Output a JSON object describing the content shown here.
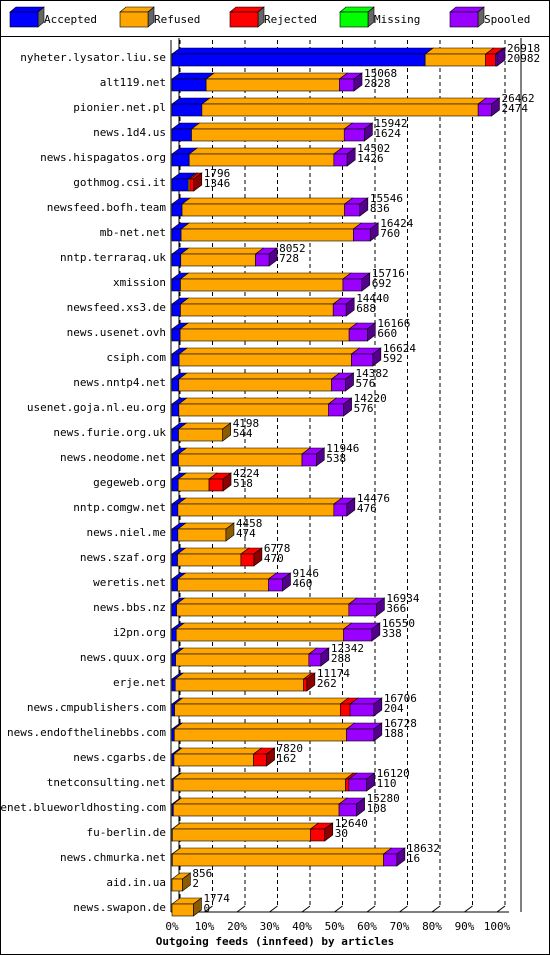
{
  "chart_data": {
    "type": "bar3d_horizontal_stacked",
    "xlabel": "Outgoing feeds (innfeed) by articles",
    "categories": [
      "nyheter.lysator.liu.se",
      "alt119.net",
      "pionier.net.pl",
      "news.1d4.us",
      "news.hispagatos.org",
      "gothmog.csi.it",
      "newsfeed.bofh.team",
      "mb-net.net",
      "nntp.terraraq.uk",
      "xmission",
      "newsfeed.xs3.de",
      "news.usenet.ovh",
      "csiph.com",
      "news.nntp4.net",
      "usenet.goja.nl.eu.org",
      "news.furie.org.uk",
      "news.neodome.net",
      "gegeweb.org",
      "nntp.comgw.net",
      "news.niel.me",
      "news.szaf.org",
      "weretis.net",
      "news.bbs.nz",
      "i2pn.org",
      "news.quux.org",
      "erje.net",
      "news.cmpublishers.com",
      "news.endofthelinebbs.com",
      "news.cgarbs.de",
      "tnetconsulting.net",
      "usenet.blueworldhosting.com",
      "fu-berlin.de",
      "news.chmurka.net",
      "aid.in.ua",
      "news.swapon.de"
    ],
    "series": [
      {
        "name": "Accepted",
        "color": "#0000ff",
        "values": [
          77.9,
          10.5,
          9.2,
          6.0,
          5.3,
          5.0,
          3.1,
          2.8,
          2.7,
          2.6,
          2.6,
          2.5,
          2.2,
          2.1,
          2.1,
          2.0,
          2.0,
          1.9,
          1.8,
          1.8,
          1.7,
          1.7,
          1.4,
          1.3,
          1.1,
          1.0,
          0.8,
          0.7,
          0.6,
          0.4,
          0.4,
          0.1,
          0.1,
          0,
          0
        ]
      },
      {
        "name": "Refused",
        "color": "#ffa500",
        "values": [
          18.6,
          41,
          85,
          47,
          44.5,
          0.5,
          50,
          53,
          23,
          50,
          47,
          52,
          53,
          47,
          46,
          13.6,
          38,
          9.5,
          48,
          14.8,
          19.5,
          28,
          53,
          51.5,
          41,
          39.5,
          51,
          53,
          24.5,
          53,
          51,
          42.5,
          65,
          3.2,
          6.6
        ]
      },
      {
        "name": "Rejected",
        "color": "#ff0000",
        "values": [
          3.0,
          0,
          0,
          0,
          0,
          1.2,
          0,
          0,
          0,
          0,
          0,
          0,
          0,
          0,
          0,
          0,
          0,
          4.3,
          0,
          0,
          4,
          0,
          0,
          0,
          0,
          1.0,
          3,
          0,
          4,
          1,
          0,
          4.4,
          0,
          0,
          0
        ]
      },
      {
        "name": "Missing",
        "color": "#00ff00",
        "values": [
          0,
          0,
          0,
          0,
          0,
          0,
          0,
          0,
          0,
          0,
          0,
          0,
          0,
          0,
          0,
          0,
          0,
          0,
          0,
          0,
          0,
          0,
          0,
          0,
          0,
          0,
          0,
          0,
          0,
          0,
          0,
          0,
          0,
          0,
          0
        ]
      },
      {
        "name": "Spooled",
        "color": "#9900ff",
        "values": [
          0.5,
          4.5,
          4.1,
          6.2,
          4.1,
          0,
          4.7,
          5.2,
          4.2,
          5.8,
          4,
          5.6,
          6.6,
          4.3,
          4.7,
          0,
          4.4,
          0,
          4,
          0,
          0,
          4.3,
          8.5,
          8.7,
          3.7,
          0,
          7.3,
          8.4,
          0,
          5.5,
          5.4,
          0,
          4.1,
          0,
          0
        ]
      }
    ],
    "bar_labels": [
      [
        26918,
        20982
      ],
      [
        15068,
        2828
      ],
      [
        26462,
        2474
      ],
      [
        15942,
        1624
      ],
      [
        14502,
        1426
      ],
      [
        1796,
        1346
      ],
      [
        15546,
        836
      ],
      [
        16424,
        760
      ],
      [
        8052,
        728
      ],
      [
        15716,
        692
      ],
      [
        14440,
        688
      ],
      [
        16166,
        660
      ],
      [
        16624,
        592
      ],
      [
        14382,
        576
      ],
      [
        14220,
        576
      ],
      [
        4198,
        544
      ],
      [
        11946,
        538
      ],
      [
        4224,
        518
      ],
      [
        14476,
        476
      ],
      [
        4458,
        474
      ],
      [
        6778,
        470
      ],
      [
        9146,
        460
      ],
      [
        16934,
        366
      ],
      [
        16550,
        338
      ],
      [
        12342,
        288
      ],
      [
        11174,
        262
      ],
      [
        16706,
        204
      ],
      [
        16728,
        188
      ],
      [
        7820,
        162
      ],
      [
        16120,
        110
      ],
      [
        15280,
        108
      ],
      [
        12640,
        30
      ],
      [
        18632,
        16
      ],
      [
        856,
        2
      ],
      [
        1774,
        0
      ]
    ],
    "xlim": [
      0,
      100
    ],
    "xticks": [
      {
        "value": 0,
        "label": "0%"
      },
      {
        "value": 10,
        "label": "10%"
      },
      {
        "value": 20,
        "label": "20%"
      },
      {
        "value": 30,
        "label": "30%"
      },
      {
        "value": 40,
        "label": "40%"
      },
      {
        "value": 50,
        "label": "50%"
      },
      {
        "value": 60,
        "label": "60%"
      },
      {
        "value": 70,
        "label": "70%"
      },
      {
        "value": 80,
        "label": "80%"
      },
      {
        "value": 90,
        "label": "90%"
      },
      {
        "value": 100,
        "label": "100%"
      }
    ],
    "grid": true
  }
}
